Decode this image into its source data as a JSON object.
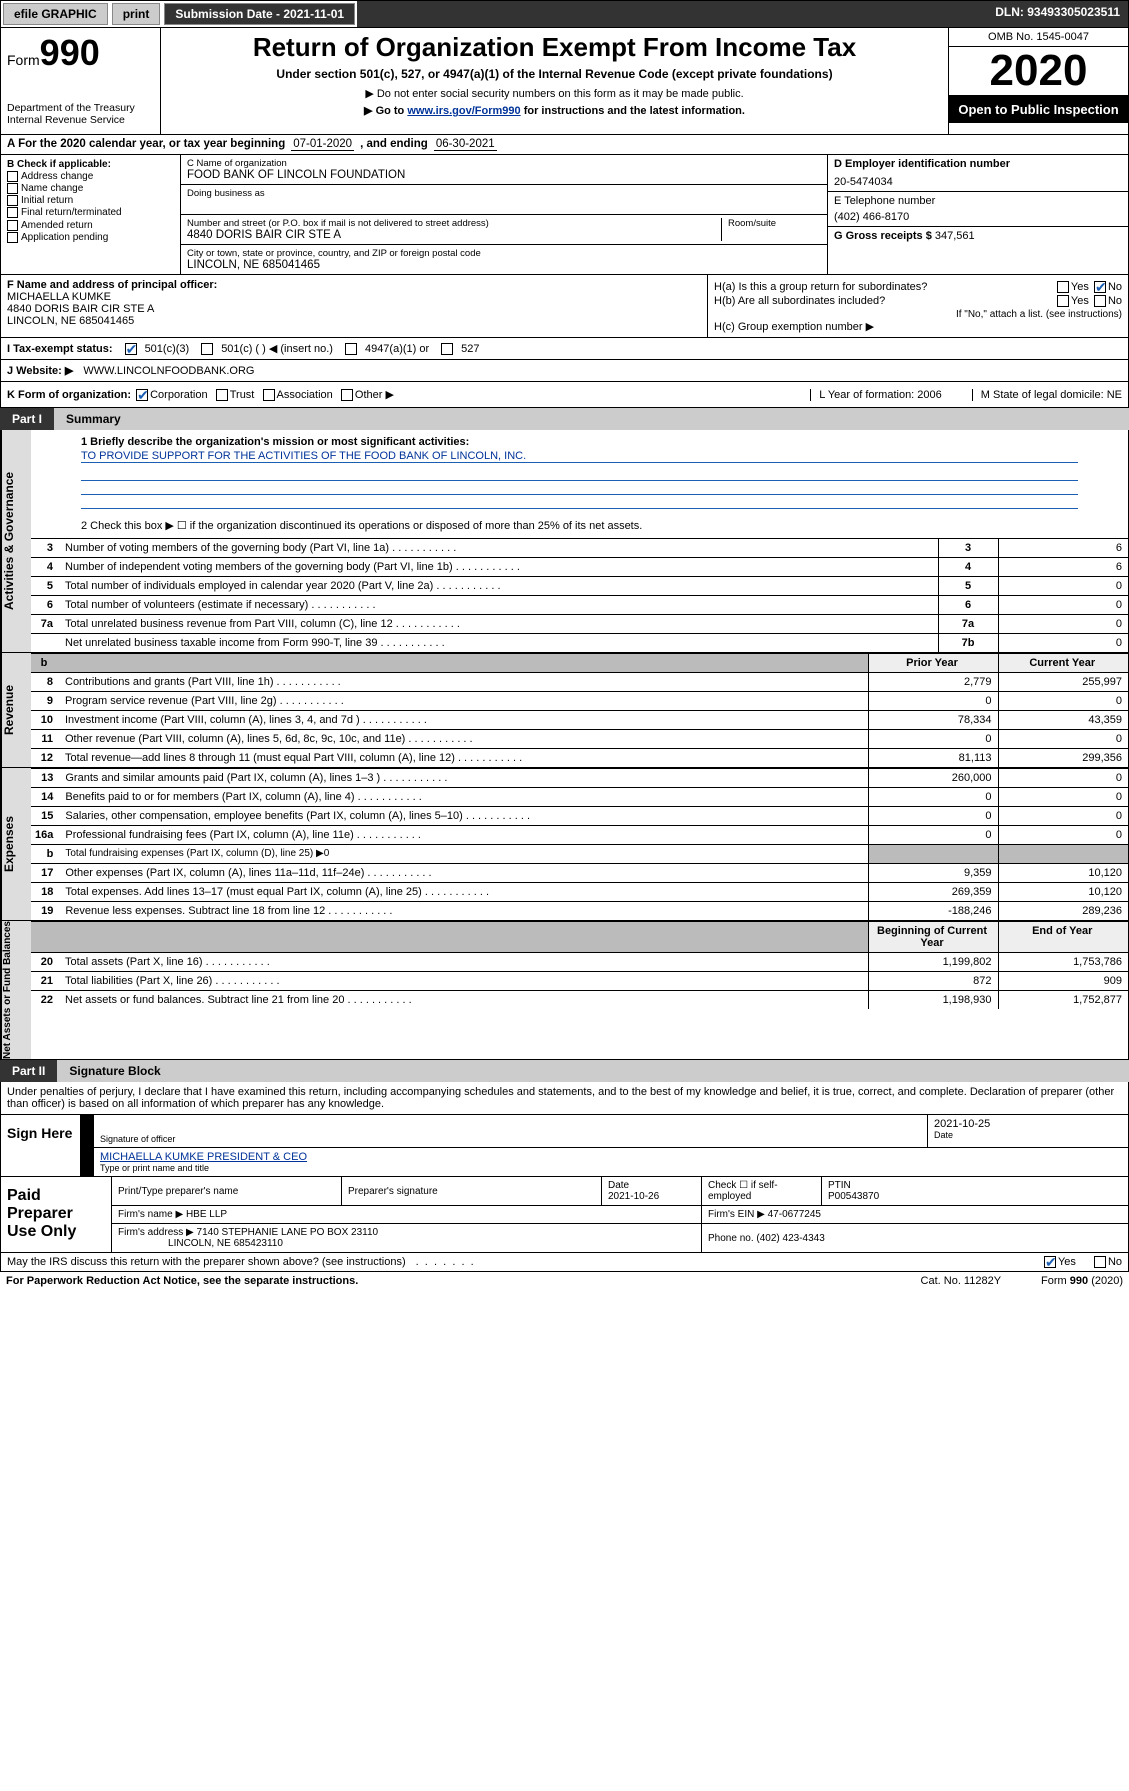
{
  "topbar": {
    "efile": "efile GRAPHIC",
    "print": "print",
    "submission": "Submission Date - 2021-11-01",
    "dln": "DLN: 93493305023511"
  },
  "header": {
    "form_prefix": "Form",
    "form_num": "990",
    "dept": "Department of the Treasury\nInternal Revenue Service",
    "title": "Return of Organization Exempt From Income Tax",
    "subtitle": "Under section 501(c), 527, or 4947(a)(1) of the Internal Revenue Code (except private foundations)",
    "note1": "▶ Do not enter social security numbers on this form as it may be made public.",
    "note2_pre": "▶ Go to ",
    "note2_link": "www.irs.gov/Form990",
    "note2_post": " for instructions and the latest information.",
    "omb": "OMB No. 1545-0047",
    "year": "2020",
    "open": "Open to Public Inspection"
  },
  "period": {
    "lead": "A For the 2020 calendar year, or tax year beginning ",
    "begin": "07-01-2020",
    "mid": " , and ending ",
    "end": "06-30-2021"
  },
  "boxB": {
    "title": "B Check if applicable:",
    "items": [
      "Address change",
      "Name change",
      "Initial return",
      "Final return/terminated",
      "Amended return",
      "Application pending"
    ]
  },
  "boxC": {
    "name_lbl": "C Name of organization",
    "name": "FOOD BANK OF LINCOLN FOUNDATION",
    "dba_lbl": "Doing business as",
    "addr_lbl": "Number and street (or P.O. box if mail is not delivered to street address)",
    "room_lbl": "Room/suite",
    "addr": "4840 DORIS BAIR CIR STE A",
    "city_lbl": "City or town, state or province, country, and ZIP or foreign postal code",
    "city": "LINCOLN, NE  685041465"
  },
  "boxD": {
    "lbl": "D Employer identification number",
    "val": "20-5474034"
  },
  "boxE": {
    "lbl": "E Telephone number",
    "val": "(402) 466-8170"
  },
  "boxG": {
    "lbl": "G Gross receipts $",
    "val": "347,561"
  },
  "boxF": {
    "lbl": "F Name and address of principal officer:",
    "name": "MICHAELLA KUMKE",
    "addr": "4840 DORIS BAIR CIR STE A",
    "city": "LINCOLN, NE  685041465"
  },
  "boxH": {
    "a": "H(a)  Is this a group return for subordinates?",
    "b": "H(b)  Are all subordinates included?",
    "b_note": "If \"No,\" attach a list. (see instructions)",
    "c": "H(c)  Group exemption number ▶"
  },
  "boxI": {
    "lbl": "I Tax-exempt status:",
    "o1": "501(c)(3)",
    "o2": "501(c) (   ) ◀ (insert no.)",
    "o3": "4947(a)(1) or",
    "o4": "527"
  },
  "boxJ": {
    "lbl": "J Website: ▶",
    "val": "WWW.LINCOLNFOODBANK.ORG"
  },
  "boxK": {
    "lbl": "K Form of organization:",
    "opts": [
      "Corporation",
      "Trust",
      "Association",
      "Other ▶"
    ],
    "L": "L Year of formation: 2006",
    "M": "M State of legal domicile: NE"
  },
  "partI": {
    "tab": "Part I",
    "title": "Summary"
  },
  "summary": {
    "l1": "1  Briefly describe the organization's mission or most significant activities:",
    "mission": "TO PROVIDE SUPPORT FOR THE ACTIVITIES OF THE FOOD BANK OF LINCOLN, INC.",
    "l2": "2  Check this box ▶ ☐  if the organization discontinued its operations or disposed of more than 25% of its net assets."
  },
  "gov_lines": [
    {
      "n": "3",
      "t": "Number of voting members of the governing body (Part VI, line 1a)",
      "c": "3",
      "v": "6"
    },
    {
      "n": "4",
      "t": "Number of independent voting members of the governing body (Part VI, line 1b)",
      "c": "4",
      "v": "6"
    },
    {
      "n": "5",
      "t": "Total number of individuals employed in calendar year 2020 (Part V, line 2a)",
      "c": "5",
      "v": "0"
    },
    {
      "n": "6",
      "t": "Total number of volunteers (estimate if necessary)",
      "c": "6",
      "v": "0"
    },
    {
      "n": "7a",
      "t": "Total unrelated business revenue from Part VIII, column (C), line 12",
      "c": "7a",
      "v": "0"
    },
    {
      "n": "",
      "t": "Net unrelated business taxable income from Form 990-T, line 39",
      "c": "7b",
      "v": "0"
    }
  ],
  "rev_hd": {
    "b": "b",
    "py": "Prior Year",
    "cy": "Current Year"
  },
  "rev_lines": [
    {
      "n": "8",
      "t": "Contributions and grants (Part VIII, line 1h)",
      "py": "2,779",
      "cy": "255,997"
    },
    {
      "n": "9",
      "t": "Program service revenue (Part VIII, line 2g)",
      "py": "0",
      "cy": "0"
    },
    {
      "n": "10",
      "t": "Investment income (Part VIII, column (A), lines 3, 4, and 7d )",
      "py": "78,334",
      "cy": "43,359"
    },
    {
      "n": "11",
      "t": "Other revenue (Part VIII, column (A), lines 5, 6d, 8c, 9c, 10c, and 11e)",
      "py": "0",
      "cy": "0"
    },
    {
      "n": "12",
      "t": "Total revenue—add lines 8 through 11 (must equal Part VIII, column (A), line 12)",
      "py": "81,113",
      "cy": "299,356"
    }
  ],
  "exp_lines": [
    {
      "n": "13",
      "t": "Grants and similar amounts paid (Part IX, column (A), lines 1–3 )",
      "py": "260,000",
      "cy": "0"
    },
    {
      "n": "14",
      "t": "Benefits paid to or for members (Part IX, column (A), line 4)",
      "py": "0",
      "cy": "0"
    },
    {
      "n": "15",
      "t": "Salaries, other compensation, employee benefits (Part IX, column (A), lines 5–10)",
      "py": "0",
      "cy": "0"
    },
    {
      "n": "16a",
      "t": "Professional fundraising fees (Part IX, column (A), line 11e)",
      "py": "0",
      "cy": "0"
    },
    {
      "n": "b",
      "t": "Total fundraising expenses (Part IX, column (D), line 25) ▶0",
      "py": "",
      "cy": "",
      "grey": true
    },
    {
      "n": "17",
      "t": "Other expenses (Part IX, column (A), lines 11a–11d, 11f–24e)",
      "py": "9,359",
      "cy": "10,120"
    },
    {
      "n": "18",
      "t": "Total expenses. Add lines 13–17 (must equal Part IX, column (A), line 25)",
      "py": "269,359",
      "cy": "10,120"
    },
    {
      "n": "19",
      "t": "Revenue less expenses. Subtract line 18 from line 12",
      "py": "-188,246",
      "cy": "289,236"
    }
  ],
  "na_hd": {
    "py": "Beginning of Current Year",
    "cy": "End of Year"
  },
  "na_lines": [
    {
      "n": "20",
      "t": "Total assets (Part X, line 16)",
      "py": "1,199,802",
      "cy": "1,753,786"
    },
    {
      "n": "21",
      "t": "Total liabilities (Part X, line 26)",
      "py": "872",
      "cy": "909"
    },
    {
      "n": "22",
      "t": "Net assets or fund balances. Subtract line 21 from line 20",
      "py": "1,198,930",
      "cy": "1,752,877"
    }
  ],
  "partII": {
    "tab": "Part II",
    "title": "Signature Block"
  },
  "perjury": "Under penalties of perjury, I declare that I have examined this return, including accompanying schedules and statements, and to the best of my knowledge and belief, it is true, correct, and complete. Declaration of preparer (other than officer) is based on all information of which preparer has any knowledge.",
  "sign": {
    "lab": "Sign Here",
    "sig_lbl": "Signature of officer",
    "date": "2021-10-25",
    "date_lbl": "Date",
    "name": "MICHAELLA KUMKE PRESIDENT & CEO",
    "name_lbl": "Type or print name and title"
  },
  "paid": {
    "lab": "Paid Preparer Use Only",
    "h1": "Print/Type preparer's name",
    "h2": "Preparer's signature",
    "h3": "Date",
    "h4": "Check ☐ if self-employed",
    "h5": "PTIN",
    "date": "2021-10-26",
    "ptin": "P00543870",
    "firm_lbl": "Firm's name   ▶",
    "firm": "HBE LLP",
    "ein_lbl": "Firm's EIN ▶",
    "ein": "47-0677245",
    "addr_lbl": "Firm's address ▶",
    "addr": "7140 STEPHANIE LANE PO BOX 23110",
    "addr2": "LINCOLN, NE  685423110",
    "phone_lbl": "Phone no.",
    "phone": "(402) 423-4343"
  },
  "discuss": {
    "q": "May the IRS discuss this return with the preparer shown above? (see instructions)",
    "yes": "Yes",
    "no": "No"
  },
  "bottom": {
    "l": "For Paperwork Reduction Act Notice, see the separate instructions.",
    "m": "Cat. No. 11282Y",
    "r": "Form 990 (2020)"
  },
  "vtabs": {
    "gov": "Activities & Governance",
    "rev": "Revenue",
    "exp": "Expenses",
    "na": "Net Assets or Fund Balances"
  }
}
